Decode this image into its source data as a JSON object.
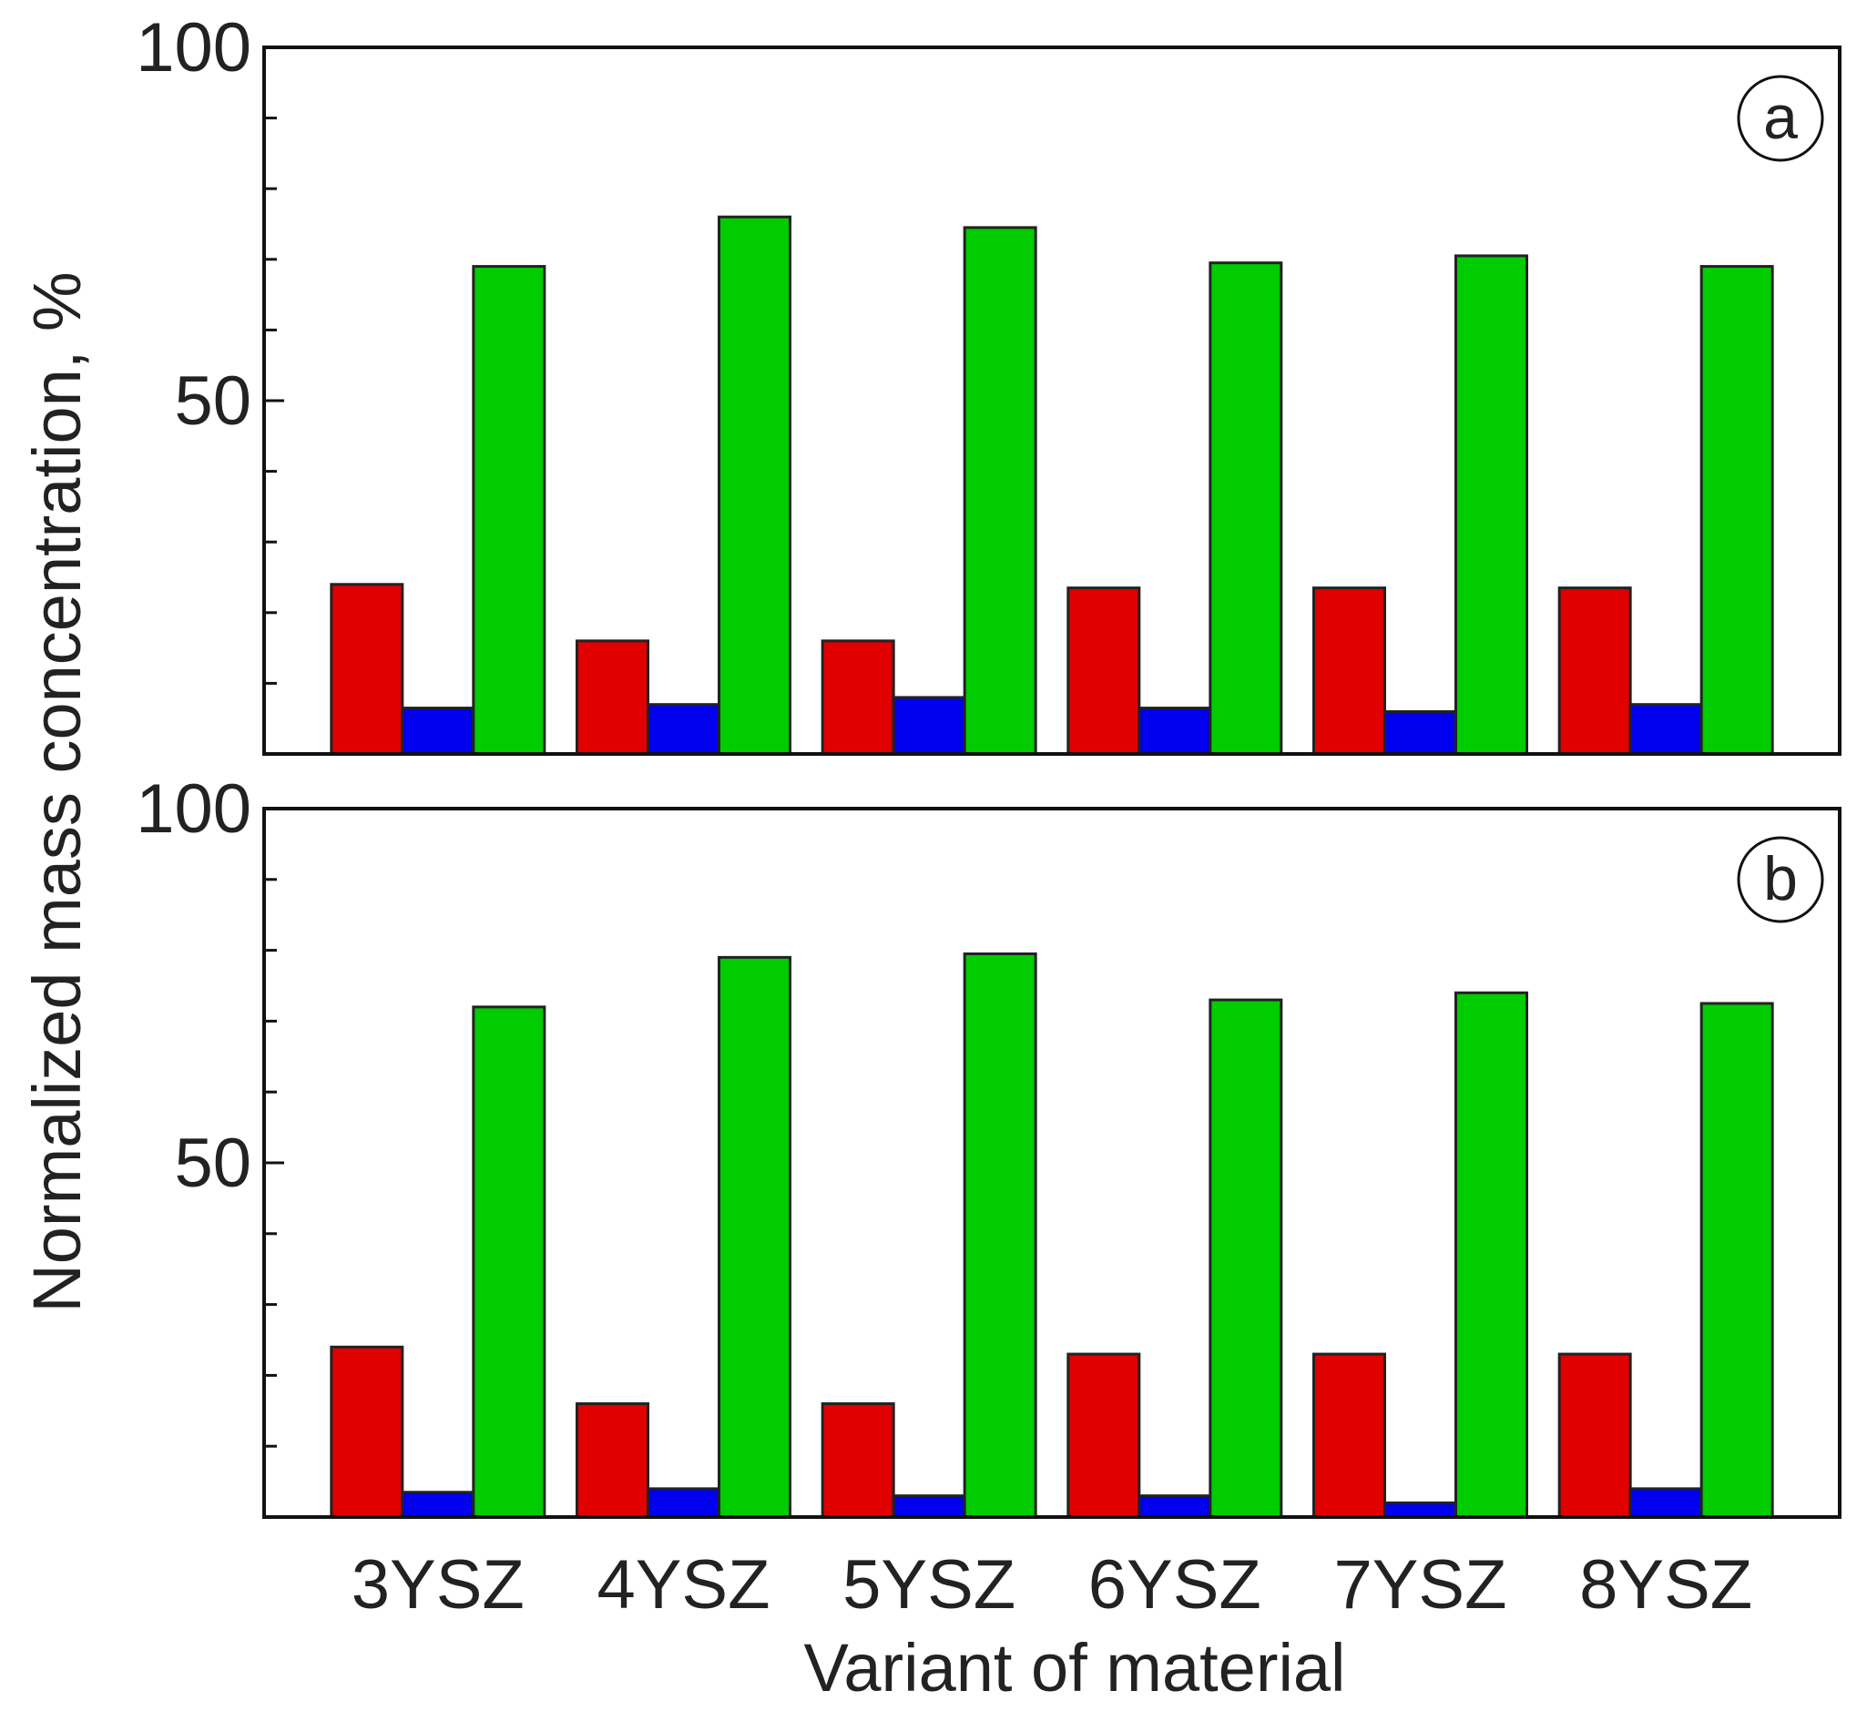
{
  "chart_data": {
    "type": "bar",
    "xlabel": "Variant of material",
    "ylabel": "Normalized mass concentration, %",
    "categories": [
      "3YSZ",
      "4YSZ",
      "5YSZ",
      "6YSZ",
      "7YSZ",
      "8YSZ"
    ],
    "colors": [
      "#e00000",
      "#0000ee",
      "#00cc00"
    ],
    "panels": [
      {
        "label": "a",
        "ylim": [
          0,
          100
        ],
        "yticks": [
          50,
          100
        ],
        "series": [
          {
            "name": "red",
            "values": [
              24,
              16,
              16,
              23.5,
              23.5,
              23.5
            ]
          },
          {
            "name": "blue",
            "values": [
              6.5,
              7,
              8,
              6.5,
              6,
              7
            ]
          },
          {
            "name": "green",
            "values": [
              69,
              76,
              74.5,
              69.5,
              70.5,
              69
            ]
          }
        ]
      },
      {
        "label": "b",
        "ylim": [
          0,
          100
        ],
        "yticks": [
          50,
          100
        ],
        "series": [
          {
            "name": "red",
            "values": [
              24,
              16,
              16,
              23,
              23,
              23
            ]
          },
          {
            "name": "blue",
            "values": [
              3.5,
              4,
              3,
              3,
              2,
              4
            ]
          },
          {
            "name": "green",
            "values": [
              72,
              79,
              79.5,
              73,
              74,
              72.5
            ]
          }
        ]
      }
    ]
  }
}
